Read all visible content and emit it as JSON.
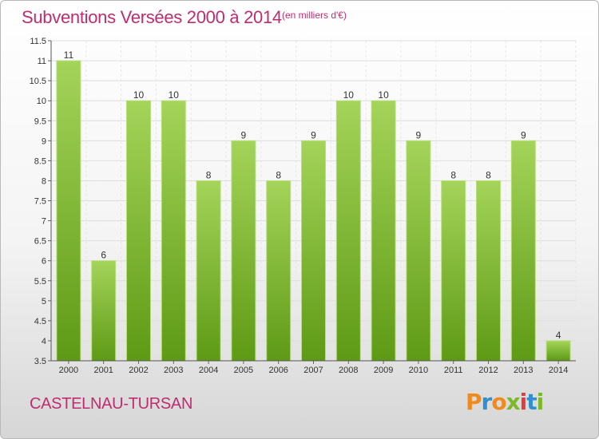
{
  "header": {
    "title": "Subventions Versées 2000 à 2014",
    "unit_note": "(en milliers d'€)"
  },
  "footer": {
    "commune": "CASTELNAU-TURSAN",
    "logo_text": "Proxiti"
  },
  "colors": {
    "title": "#bf2c6f",
    "bar_top": "#a4d45a",
    "bar_bottom": "#5e9a15"
  },
  "chart_data": {
    "type": "bar",
    "title": "Subventions Versées 2000 à 2014",
    "subtitle": "(en milliers d'€)",
    "categories": [
      "2000",
      "2001",
      "2002",
      "2003",
      "2004",
      "2005",
      "2006",
      "2007",
      "2008",
      "2009",
      "2010",
      "2011",
      "2012",
      "2013",
      "2014"
    ],
    "values": [
      11,
      6,
      10,
      10,
      8,
      9,
      8,
      9,
      10,
      10,
      9,
      8,
      8,
      9,
      4
    ],
    "data_labels": [
      "11",
      "6",
      "10",
      "10",
      "8",
      "9",
      "8",
      "9",
      "10",
      "10",
      "9",
      "8",
      "8",
      "9",
      "4"
    ],
    "ylim": [
      3.5,
      11.5
    ],
    "yticks": [
      3.5,
      4,
      4.5,
      5,
      5.5,
      6,
      6.5,
      7,
      7.5,
      8,
      8.5,
      9,
      9.5,
      10,
      10.5,
      11,
      11.5
    ],
    "ytick_labels": [
      "3.5",
      "4",
      "4.5",
      "5",
      "5.5",
      "6",
      "6.5",
      "7",
      "7.5",
      "8",
      "8.5",
      "9",
      "9.5",
      "10",
      "10.5",
      "11",
      "11.5"
    ],
    "grid": true,
    "xlabel": "",
    "ylabel": ""
  }
}
